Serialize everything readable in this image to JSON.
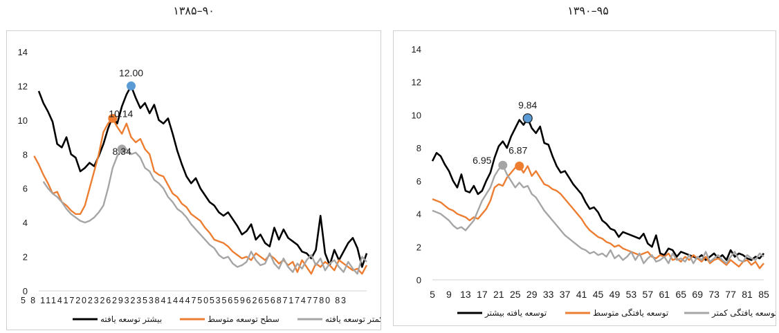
{
  "chart_data": [
    {
      "type": "line",
      "title": "۹۰–۱۳۸۵",
      "xlabel": "",
      "ylabel": "",
      "ylim": [
        0,
        14
      ],
      "yticks": [
        0,
        2,
        4,
        6,
        8,
        10,
        12,
        14
      ],
      "xtick_text": "5 8 111417202326293235384144475053565962656871747780 83",
      "grid": false,
      "legend": "bottom",
      "x_start": 5,
      "series": [
        {
          "name": "بیشتر توسعه یافته",
          "color": "#000000",
          "values": [
            11.7,
            11.0,
            10.5,
            9.9,
            8.6,
            8.4,
            9.0,
            8.0,
            7.8,
            7.0,
            7.2,
            7.5,
            7.3,
            7.9,
            8.6,
            9.5,
            10.2,
            9.8,
            10.8,
            11.5,
            12.0,
            11.3,
            10.7,
            11.0,
            10.4,
            10.9,
            10.0,
            9.8,
            10.1,
            9.2,
            8.2,
            7.4,
            6.7,
            6.3,
            6.6,
            6.0,
            5.6,
            5.2,
            5.0,
            4.6,
            4.4,
            4.6,
            4.2,
            3.8,
            3.3,
            3.5,
            3.9,
            3.0,
            3.3,
            2.8,
            2.6,
            3.7,
            3.0,
            3.6,
            3.1,
            2.9,
            2.7,
            2.3,
            2.2,
            1.9,
            2.4,
            4.4,
            2.2,
            1.5,
            2.4,
            1.8,
            2.3,
            2.8,
            3.1,
            2.5,
            1.4,
            2.2
          ]
        },
        {
          "name": "سطح توسعه متوسط",
          "color": "#ed7d31",
          "values": [
            7.9,
            7.4,
            6.8,
            6.3,
            5.7,
            5.8,
            5.2,
            5.0,
            4.7,
            4.5,
            4.5,
            5.0,
            6.0,
            7.0,
            8.0,
            9.3,
            9.8,
            10.1,
            9.6,
            9.2,
            9.8,
            9.0,
            8.7,
            8.9,
            8.3,
            8.0,
            7.0,
            6.8,
            6.7,
            6.2,
            5.7,
            5.5,
            5.1,
            4.9,
            4.5,
            4.3,
            4.1,
            3.7,
            3.4,
            3.0,
            2.9,
            2.8,
            2.6,
            2.3,
            2.1,
            1.9,
            2.0,
            1.8,
            2.2,
            2.0,
            1.8,
            2.1,
            1.9,
            1.6,
            1.8,
            1.5,
            1.7,
            1.1,
            1.8,
            1.4,
            1.0,
            1.6,
            1.4,
            1.7,
            1.5,
            1.2,
            1.8,
            1.6,
            1.4,
            1.2,
            1.3,
            1.0,
            1.5
          ]
        },
        {
          "name": "کمتر توسعه یافته",
          "color": "#a5a5a5",
          "values": [
            6.4,
            6.0,
            5.7,
            5.5,
            5.2,
            4.8,
            4.5,
            4.3,
            4.1,
            4.0,
            4.1,
            4.3,
            4.6,
            5.0,
            6.0,
            7.2,
            7.9,
            8.3,
            8.3,
            8.0,
            8.1,
            7.8,
            7.2,
            7.0,
            6.5,
            6.3,
            6.0,
            5.5,
            5.2,
            4.8,
            4.6,
            4.3,
            3.9,
            3.6,
            3.3,
            3.0,
            2.7,
            2.5,
            2.1,
            1.9,
            2.0,
            1.6,
            1.4,
            1.5,
            1.7,
            2.3,
            1.8,
            1.5,
            1.6,
            2.2,
            1.6,
            1.3,
            1.9,
            1.4,
            1.1,
            1.6,
            1.3,
            1.8,
            2.1,
            1.5,
            1.9,
            1.2,
            1.6,
            1.8,
            1.4,
            1.1,
            1.7,
            1.3,
            1.0,
            2.0,
            1.7
          ]
        }
      ],
      "annotations": [
        {
          "series": 0,
          "label": "12.00"
        },
        {
          "series": 1,
          "label": "10.14"
        },
        {
          "series": 2,
          "label": "8.34"
        }
      ]
    },
    {
      "type": "line",
      "title": "۹۵–۱۳۹۰",
      "xlabel": "",
      "ylabel": "",
      "ylim": [
        0,
        14
      ],
      "yticks": [
        0,
        2,
        4,
        6,
        8,
        10,
        12,
        14
      ],
      "x_start": 5,
      "x_end": 85,
      "xticks": [
        5,
        9,
        13,
        17,
        21,
        25,
        29,
        33,
        37,
        41,
        45,
        49,
        53,
        57,
        61,
        65,
        69,
        73,
        77,
        81,
        85
      ],
      "grid": false,
      "legend": "bottom",
      "series": [
        {
          "name": "توسعه یافته بیشتر",
          "color": "#000000",
          "values": [
            7.2,
            7.7,
            7.5,
            7.0,
            6.6,
            6.0,
            5.6,
            6.4,
            5.4,
            5.3,
            5.7,
            5.2,
            5.4,
            6.0,
            6.5,
            7.4,
            8.1,
            8.4,
            8.0,
            8.7,
            9.2,
            9.7,
            9.4,
            9.8,
            9.2,
            8.9,
            9.3,
            8.3,
            8.2,
            7.5,
            6.9,
            6.5,
            6.6,
            6.2,
            5.8,
            5.5,
            5.2,
            4.7,
            4.3,
            4.4,
            4.1,
            3.6,
            3.4,
            3.1,
            3.0,
            2.6,
            2.9,
            2.8,
            2.7,
            2.6,
            2.5,
            2.8,
            2.2,
            2.0,
            2.7,
            1.6,
            1.5,
            1.9,
            1.8,
            1.4,
            1.7,
            1.6,
            1.5,
            1.4,
            1.3,
            1.5,
            1.2,
            1.4,
            1.6,
            1.3,
            1.5,
            1.2,
            1.8,
            1.4,
            1.6,
            1.5,
            1.3,
            1.2,
            1.4,
            1.3,
            1.6
          ]
        },
        {
          "name": "توسعه یافتگی متوسط",
          "color": "#ed7d31",
          "values": [
            4.9,
            4.8,
            4.7,
            4.5,
            4.3,
            4.2,
            4.0,
            3.9,
            3.8,
            3.6,
            3.8,
            3.7,
            4.0,
            4.3,
            4.8,
            5.6,
            5.8,
            5.7,
            6.2,
            6.5,
            6.8,
            6.9,
            6.5,
            6.9,
            6.3,
            6.6,
            6.2,
            5.8,
            5.7,
            5.5,
            5.4,
            5.2,
            4.9,
            4.6,
            4.3,
            4.0,
            3.7,
            3.3,
            3.0,
            2.8,
            2.6,
            2.5,
            2.3,
            2.2,
            2.0,
            2.1,
            1.9,
            1.8,
            1.7,
            1.6,
            1.5,
            1.6,
            1.7,
            1.4,
            1.3,
            1.5,
            1.4,
            1.6,
            1.2,
            1.3,
            1.1,
            1.4,
            1.2,
            1.5,
            1.3,
            1.1,
            1.4,
            1.0,
            1.2,
            1.3,
            1.1,
            0.9,
            1.2,
            1.0,
            0.8,
            1.1,
            1.2,
            0.9,
            1.1,
            0.7,
            1.0
          ]
        },
        {
          "name": "توسعه یافتگی کمتر",
          "color": "#a5a5a5",
          "values": [
            4.2,
            4.1,
            4.0,
            3.8,
            3.6,
            3.3,
            3.1,
            3.2,
            3.0,
            3.3,
            3.6,
            4.2,
            4.8,
            5.2,
            5.6,
            6.3,
            6.7,
            6.95,
            6.4,
            6.0,
            5.6,
            5.9,
            5.6,
            5.7,
            5.2,
            5.0,
            4.6,
            4.2,
            3.9,
            3.6,
            3.3,
            3.0,
            2.7,
            2.5,
            2.3,
            2.1,
            1.9,
            1.8,
            1.6,
            1.7,
            1.5,
            1.6,
            1.4,
            1.8,
            1.3,
            1.5,
            1.2,
            1.4,
            1.7,
            1.2,
            1.6,
            1.0,
            1.3,
            1.5,
            1.1,
            1.2,
            1.4,
            1.0,
            1.6,
            1.2,
            1.3,
            1.1,
            1.5,
            1.0,
            1.4,
            1.2,
            1.7,
            1.1,
            1.3,
            1.5,
            1.2,
            1.0,
            1.4,
            1.7,
            1.2,
            1.1,
            1.5,
            1.3,
            1.2,
            1.6,
            1.4
          ]
        }
      ],
      "annotations": [
        {
          "series": 0,
          "label": "9.84"
        },
        {
          "series": 1,
          "label": "6.87"
        },
        {
          "series": 2,
          "label": "6.95"
        }
      ]
    }
  ],
  "highlight": {
    "peak_point_fill": "#5b9bd5"
  }
}
